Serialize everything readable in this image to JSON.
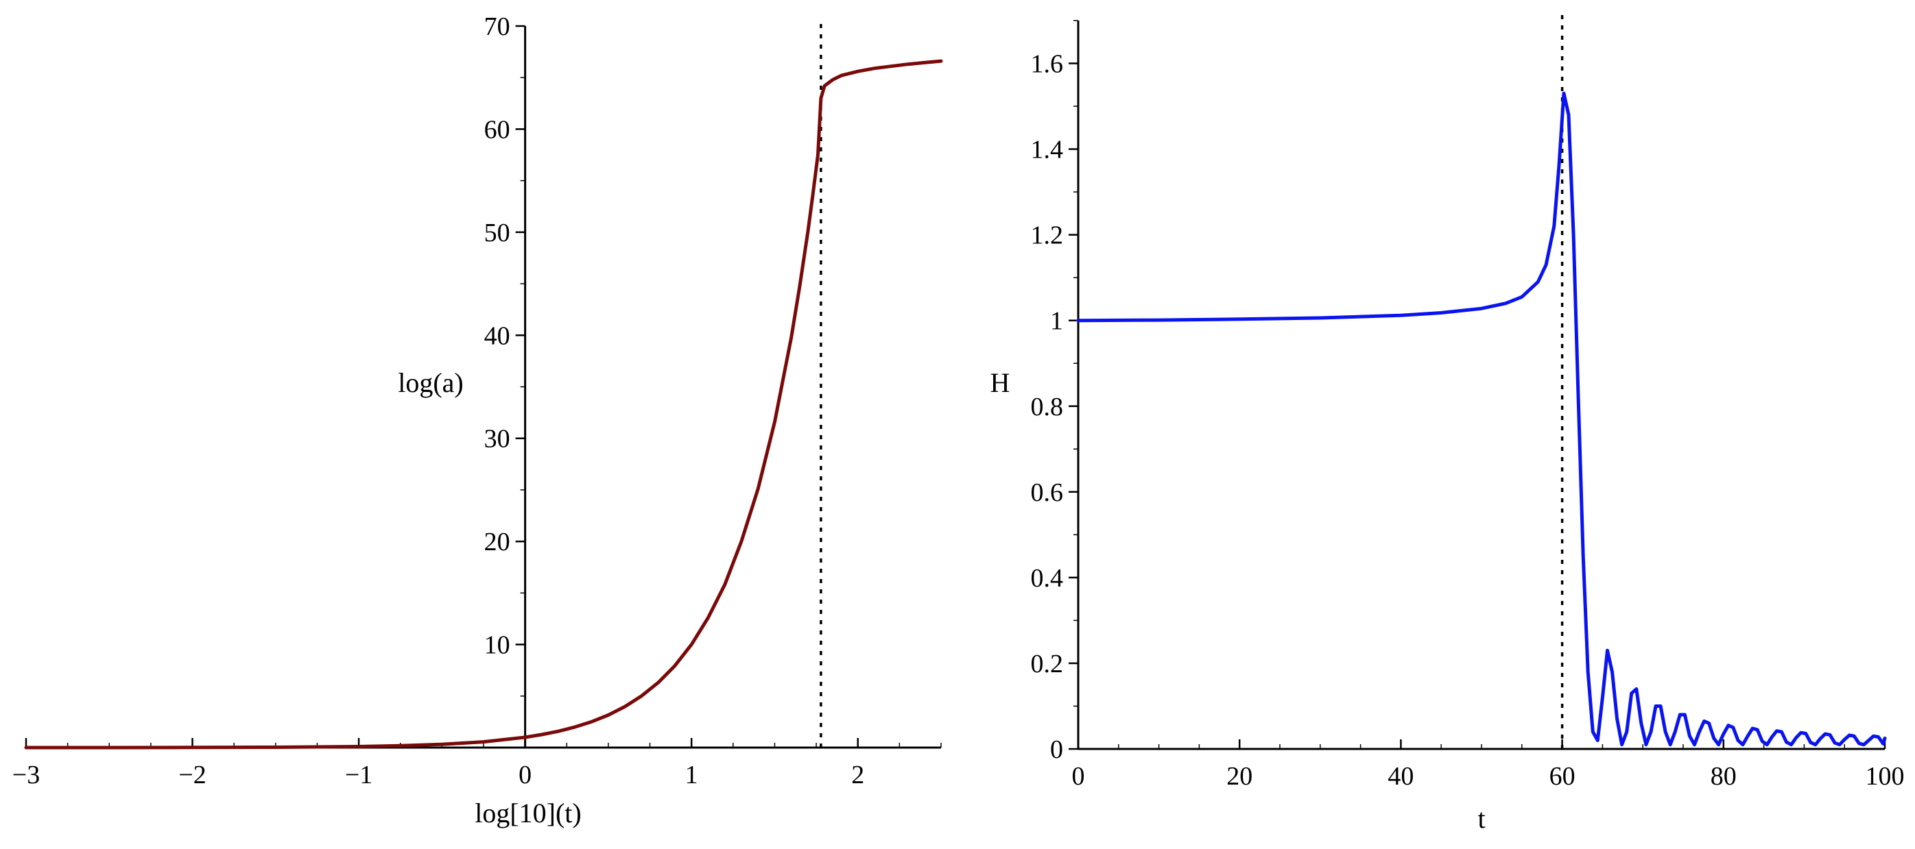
{
  "chart_data": [
    {
      "type": "line",
      "title": "",
      "xlabel": "log[10](t)",
      "ylabel": "log(a)",
      "xlim": [
        -3,
        2.5
      ],
      "ylim": [
        0,
        70
      ],
      "x_ticks": [
        -3,
        -2,
        -1,
        0,
        1,
        2
      ],
      "x_tick_labels": [
        "−3",
        "−2",
        "−1",
        "0",
        "1",
        "2"
      ],
      "y_ticks": [
        10,
        20,
        30,
        40,
        50,
        60,
        70
      ],
      "y_tick_labels": [
        "10",
        "20",
        "30",
        "40",
        "50",
        "60",
        "70"
      ],
      "vertical_line": {
        "x": 1.778,
        "style": "dotted",
        "color": "#000000"
      },
      "series": [
        {
          "name": "log(a)",
          "color": "#7a0a0a",
          "x": [
            -3,
            -2.5,
            -2,
            -1.5,
            -1,
            -0.75,
            -0.5,
            -0.25,
            0,
            0.1,
            0.2,
            0.3,
            0.4,
            0.5,
            0.6,
            0.7,
            0.8,
            0.9,
            1.0,
            1.1,
            1.2,
            1.3,
            1.4,
            1.5,
            1.6,
            1.65,
            1.7,
            1.73,
            1.76,
            1.778,
            1.8,
            1.85,
            1.9,
            2.0,
            2.1,
            2.2,
            2.3,
            2.4,
            2.5
          ],
          "y": [
            0.0,
            0.0,
            0.01,
            0.03,
            0.1,
            0.18,
            0.32,
            0.56,
            1.0,
            1.26,
            1.58,
            2.0,
            2.51,
            3.16,
            3.98,
            5.01,
            6.31,
            7.94,
            10.0,
            12.6,
            15.8,
            20.0,
            25.1,
            31.6,
            39.8,
            44.7,
            50.1,
            53.7,
            57.5,
            63.0,
            64.2,
            64.8,
            65.2,
            65.6,
            65.9,
            66.1,
            66.3,
            66.45,
            66.6
          ]
        }
      ]
    },
    {
      "type": "line",
      "title": "",
      "xlabel": "t",
      "ylabel": "H",
      "xlim": [
        0,
        100
      ],
      "ylim": [
        0,
        1.7
      ],
      "x_ticks": [
        0,
        20,
        40,
        60,
        80,
        100
      ],
      "x_tick_labels": [
        "0",
        "20",
        "40",
        "60",
        "80",
        "100"
      ],
      "y_ticks": [
        0,
        0.2,
        0.4,
        0.6,
        0.8,
        1,
        1.2,
        1.4,
        1.6
      ],
      "y_tick_labels": [
        "0",
        "0.2",
        "0.4",
        "0.6",
        "0.8",
        "1",
        "1.2",
        "1.4",
        "1.6"
      ],
      "vertical_line": {
        "x": 60,
        "style": "dotted",
        "color": "#000000"
      },
      "series": [
        {
          "name": "H",
          "color": "#0a14f0",
          "x": [
            0,
            10,
            20,
            30,
            40,
            45,
            50,
            53,
            55,
            57,
            58,
            59,
            59.6,
            60.2,
            60.8,
            61.4,
            62,
            62.6,
            63.2,
            63.8,
            64.4,
            65,
            65.6,
            66.2,
            66.8,
            67.4,
            68,
            68.6,
            69.2,
            69.8,
            70.4,
            71,
            71.6,
            72.2,
            72.8,
            73.4,
            74,
            74.6,
            75.2,
            75.8,
            76.4,
            77,
            77.6,
            78.2,
            78.8,
            79.4,
            80,
            80.6,
            81.2,
            81.8,
            82.4,
            83,
            83.6,
            84.2,
            84.8,
            85.4,
            86,
            86.6,
            87.2,
            87.8,
            88.4,
            89,
            89.6,
            90.2,
            90.8,
            91.4,
            92,
            92.6,
            93.2,
            93.8,
            94.4,
            95,
            95.6,
            96.2,
            96.8,
            97.4,
            98,
            98.6,
            99.2,
            99.8,
            100
          ],
          "y": [
            1.0,
            1.001,
            1.003,
            1.006,
            1.012,
            1.018,
            1.028,
            1.04,
            1.055,
            1.09,
            1.13,
            1.22,
            1.36,
            1.53,
            1.48,
            1.2,
            0.82,
            0.45,
            0.18,
            0.04,
            0.02,
            0.12,
            0.23,
            0.18,
            0.07,
            0.01,
            0.04,
            0.13,
            0.14,
            0.06,
            0.01,
            0.04,
            0.1,
            0.1,
            0.04,
            0.01,
            0.04,
            0.08,
            0.08,
            0.03,
            0.01,
            0.04,
            0.065,
            0.06,
            0.025,
            0.01,
            0.035,
            0.055,
            0.05,
            0.02,
            0.01,
            0.03,
            0.048,
            0.045,
            0.018,
            0.01,
            0.028,
            0.042,
            0.04,
            0.016,
            0.01,
            0.026,
            0.038,
            0.036,
            0.015,
            0.01,
            0.024,
            0.035,
            0.033,
            0.014,
            0.01,
            0.022,
            0.032,
            0.03,
            0.013,
            0.01,
            0.02,
            0.03,
            0.028,
            0.012,
            0.025
          ]
        }
      ]
    }
  ]
}
